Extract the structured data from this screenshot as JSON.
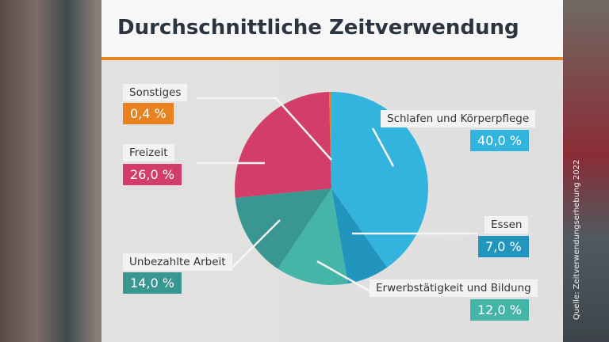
{
  "title": "Durchschnittliche Zeitverwendung",
  "source": "Quelle: Zeitverwendungserhebung 2022",
  "chart_data": {
    "type": "pie",
    "title": "Durchschnittliche Zeitverwendung",
    "unit": "%",
    "slices": [
      {
        "label": "Schlafen und Körperpflege",
        "value": 40.0,
        "display": "40,0 %",
        "color": "#32b4de"
      },
      {
        "label": "Essen",
        "value": 7.0,
        "display": "7,0 %",
        "color": "#2195bd"
      },
      {
        "label": "Erwerbstätigkeit und Bildung",
        "value": 12.0,
        "display": "12,0 %",
        "color": "#45b5a8"
      },
      {
        "label": "Unbezahlte Arbeit",
        "value": 14.0,
        "display": "14,0 %",
        "color": "#3a9690"
      },
      {
        "label": "Freizeit",
        "value": 26.0,
        "display": "26,0 %",
        "color": "#d33d6a"
      },
      {
        "label": "Sonstiges",
        "value": 0.4,
        "display": "0,4 %",
        "color": "#e8821e"
      }
    ]
  }
}
